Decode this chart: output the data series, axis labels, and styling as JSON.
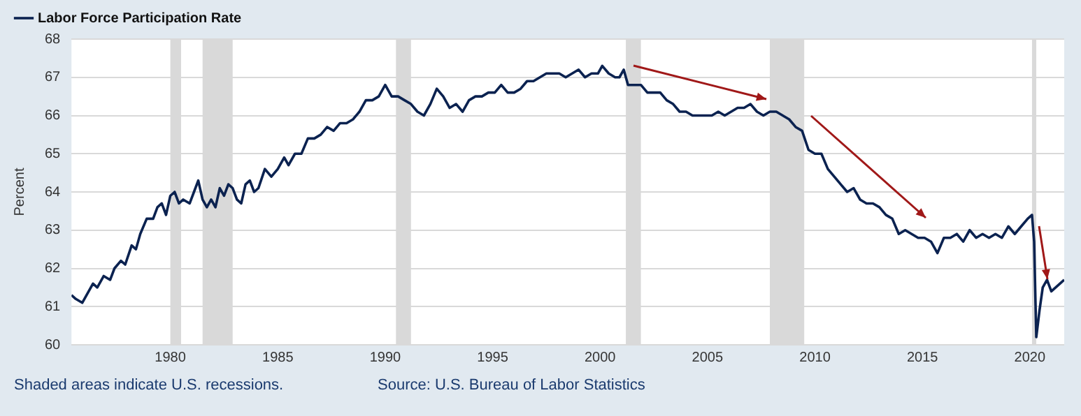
{
  "chart_data": {
    "type": "line",
    "ylabel": "Percent",
    "x": [
      1975.4,
      1975.6,
      1975.9,
      1976.2,
      1976.4,
      1976.6,
      1976.9,
      1977.2,
      1977.4,
      1977.7,
      1977.9,
      1978.2,
      1978.4,
      1978.6,
      1978.9,
      1979.2,
      1979.4,
      1979.6,
      1979.8,
      1980.0,
      1980.2,
      1980.4,
      1980.6,
      1980.9,
      1981.1,
      1981.3,
      1981.5,
      1981.7,
      1981.9,
      1982.1,
      1982.3,
      1982.5,
      1982.7,
      1982.9,
      1983.1,
      1983.3,
      1983.5,
      1983.7,
      1983.9,
      1984.1,
      1984.4,
      1984.7,
      1985.0,
      1985.3,
      1985.5,
      1985.8,
      1986.1,
      1986.4,
      1986.7,
      1987.0,
      1987.3,
      1987.6,
      1987.9,
      1988.2,
      1988.5,
      1988.8,
      1989.1,
      1989.4,
      1989.7,
      1990.0,
      1990.3,
      1990.6,
      1990.9,
      1991.2,
      1991.5,
      1991.8,
      1992.1,
      1992.4,
      1992.7,
      1993.0,
      1993.3,
      1993.6,
      1993.9,
      1994.2,
      1994.5,
      1994.8,
      1995.1,
      1995.4,
      1995.7,
      1996.0,
      1996.3,
      1996.6,
      1996.9,
      1997.2,
      1997.5,
      1997.8,
      1998.1,
      1998.4,
      1998.7,
      1999.0,
      1999.3,
      1999.6,
      1999.9,
      2000.1,
      2000.4,
      2000.7,
      2000.9,
      2001.1,
      2001.3,
      2001.6,
      2001.9,
      2002.2,
      2002.5,
      2002.8,
      2003.1,
      2003.4,
      2003.7,
      2004.0,
      2004.3,
      2004.6,
      2004.9,
      2005.2,
      2005.5,
      2005.8,
      2006.1,
      2006.4,
      2006.7,
      2007.0,
      2007.3,
      2007.6,
      2007.9,
      2008.2,
      2008.5,
      2008.8,
      2009.1,
      2009.4,
      2009.7,
      2010.0,
      2010.3,
      2010.6,
      2010.9,
      2011.2,
      2011.5,
      2011.8,
      2012.1,
      2012.4,
      2012.7,
      2013.0,
      2013.3,
      2013.6,
      2013.9,
      2014.2,
      2014.5,
      2014.8,
      2015.1,
      2015.4,
      2015.7,
      2016.0,
      2016.3,
      2016.6,
      2016.9,
      2017.2,
      2017.5,
      2017.8,
      2018.1,
      2018.4,
      2018.7,
      2019.0,
      2019.3,
      2019.6,
      2019.9,
      2020.1,
      2020.2,
      2020.3,
      2020.45,
      2020.6,
      2020.8,
      2021.0,
      2021.2,
      2021.4,
      2021.6
    ],
    "series": [
      {
        "name": "Labor Force Participation Rate",
        "color": "#0b2250",
        "values": [
          61.3,
          61.2,
          61.1,
          61.4,
          61.6,
          61.5,
          61.8,
          61.7,
          62.0,
          62.2,
          62.1,
          62.6,
          62.5,
          62.9,
          63.3,
          63.3,
          63.6,
          63.7,
          63.4,
          63.9,
          64.0,
          63.7,
          63.8,
          63.7,
          64.0,
          64.3,
          63.8,
          63.6,
          63.8,
          63.6,
          64.1,
          63.9,
          64.2,
          64.1,
          63.8,
          63.7,
          64.2,
          64.3,
          64.0,
          64.1,
          64.6,
          64.4,
          64.6,
          64.9,
          64.7,
          65.0,
          65.0,
          65.4,
          65.4,
          65.5,
          65.7,
          65.6,
          65.8,
          65.8,
          65.9,
          66.1,
          66.4,
          66.4,
          66.5,
          66.8,
          66.5,
          66.5,
          66.4,
          66.3,
          66.1,
          66.0,
          66.3,
          66.7,
          66.5,
          66.2,
          66.3,
          66.1,
          66.4,
          66.5,
          66.5,
          66.6,
          66.6,
          66.8,
          66.6,
          66.6,
          66.7,
          66.9,
          66.9,
          67.0,
          67.1,
          67.1,
          67.1,
          67.0,
          67.1,
          67.2,
          67.0,
          67.1,
          67.1,
          67.3,
          67.1,
          67.0,
          67.0,
          67.2,
          66.8,
          66.8,
          66.8,
          66.6,
          66.6,
          66.6,
          66.4,
          66.3,
          66.1,
          66.1,
          66.0,
          66.0,
          66.0,
          66.0,
          66.1,
          66.0,
          66.1,
          66.2,
          66.2,
          66.3,
          66.1,
          66.0,
          66.1,
          66.1,
          66.0,
          65.9,
          65.7,
          65.6,
          65.1,
          65.0,
          65.0,
          64.6,
          64.4,
          64.2,
          64.0,
          64.1,
          63.8,
          63.7,
          63.7,
          63.6,
          63.4,
          63.3,
          62.9,
          63.0,
          62.9,
          62.8,
          62.8,
          62.7,
          62.4,
          62.8,
          62.8,
          62.9,
          62.7,
          63.0,
          62.8,
          62.9,
          62.8,
          62.9,
          62.8,
          63.1,
          62.9,
          63.1,
          63.3,
          63.4,
          62.7,
          60.2,
          60.9,
          61.5,
          61.7,
          61.4,
          61.5,
          61.6,
          61.7
        ]
      }
    ],
    "xlim": [
      1975.4,
      2021.6
    ],
    "xticks": [
      1980,
      1985,
      1990,
      1995,
      2000,
      2005,
      2010,
      2015,
      2020
    ],
    "ylim": [
      60,
      68
    ],
    "yticks": [
      60,
      61,
      62,
      63,
      64,
      65,
      66,
      67,
      68
    ],
    "bands": [
      {
        "axis": "x",
        "from": 1980.0,
        "to": 1980.5,
        "color": "#d9d9d9"
      },
      {
        "axis": "x",
        "from": 1981.5,
        "to": 1982.9,
        "color": "#d9d9d9"
      },
      {
        "axis": "x",
        "from": 1990.5,
        "to": 1991.2,
        "color": "#d9d9d9"
      },
      {
        "axis": "x",
        "from": 2001.2,
        "to": 2001.9,
        "color": "#d9d9d9"
      },
      {
        "axis": "x",
        "from": 2007.9,
        "to": 2009.5,
        "color": "#d9d9d9"
      },
      {
        "axis": "x",
        "from": 2020.1,
        "to": 2020.3,
        "color": "#d9d9d9"
      }
    ],
    "annotations": [
      "Shaded areas indicate U.S. recessions.",
      "Source: U.S. Bureau of Labor Statistics"
    ],
    "grid": "y",
    "legend": "top left",
    "marker": "none",
    "line_style": "solid"
  }
}
